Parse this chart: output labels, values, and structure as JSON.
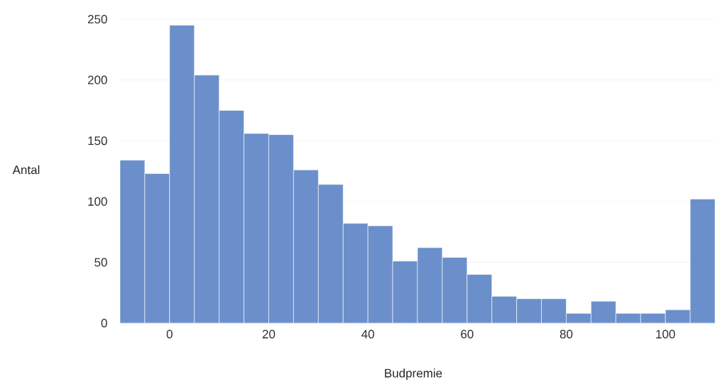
{
  "chart_data": {
    "type": "histogram",
    "xlabel": "Budpremie",
    "ylabel": "Antal",
    "bins": [
      -10,
      -5,
      0,
      5,
      10,
      15,
      20,
      25,
      30,
      35,
      40,
      45,
      50,
      55,
      60,
      65,
      70,
      75,
      80,
      85,
      90,
      95,
      100,
      105,
      110
    ],
    "values": [
      134,
      123,
      245,
      204,
      175,
      156,
      155,
      126,
      114,
      82,
      80,
      51,
      62,
      54,
      40,
      22,
      20,
      20,
      8,
      18,
      8,
      8,
      11,
      102
    ],
    "color": "#6b8fcb",
    "xlim": [
      -10,
      110
    ],
    "xticks": [
      0,
      20,
      40,
      60,
      80,
      100
    ],
    "ylim": [
      0,
      250
    ],
    "yticks": [
      0,
      50,
      100,
      150,
      200,
      250
    ],
    "grid": "y"
  }
}
